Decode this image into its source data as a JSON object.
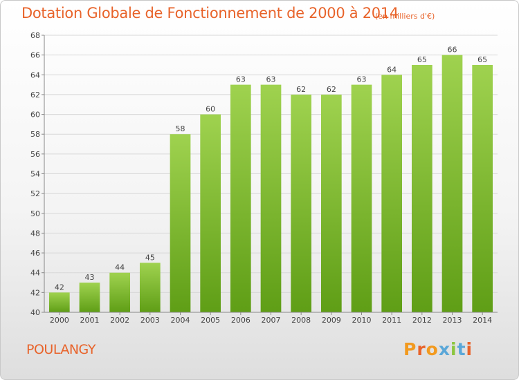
{
  "header": {
    "title": "Dotation Globale de Fonctionnement de 2000 à 2014",
    "subtitle": "(en milliers d'€)"
  },
  "footer": {
    "commune": "POULANGY",
    "logo_text": "Proxiti"
  },
  "colors": {
    "title": "#e8632a",
    "bar_top": "#9fd24f",
    "bar_bottom": "#5f9e16",
    "grid": "#d8d8d8",
    "axis": "#888888",
    "logo_letters": [
      "#f29a1f",
      "#e8632a",
      "#f29a1f",
      "#5aa7d8",
      "#8cc63f",
      "#5aa7d8",
      "#e8632a"
    ]
  },
  "chart_data": {
    "type": "bar",
    "categories": [
      "2000",
      "2001",
      "2002",
      "2003",
      "2004",
      "2005",
      "2006",
      "2007",
      "2008",
      "2009",
      "2010",
      "2011",
      "2012",
      "2013",
      "2014"
    ],
    "values": [
      42,
      43,
      44,
      45,
      58,
      60,
      63,
      63,
      62,
      62,
      63,
      64,
      65,
      66,
      65
    ],
    "ylim": [
      40,
      68
    ],
    "yticks": [
      40,
      42,
      44,
      46,
      48,
      50,
      52,
      54,
      56,
      58,
      60,
      62,
      64,
      66,
      68
    ],
    "grid": true,
    "legend": "none",
    "title": "Dotation Globale de Fonctionnement de 2000 à 2014",
    "xlabel": "",
    "ylabel": ""
  }
}
